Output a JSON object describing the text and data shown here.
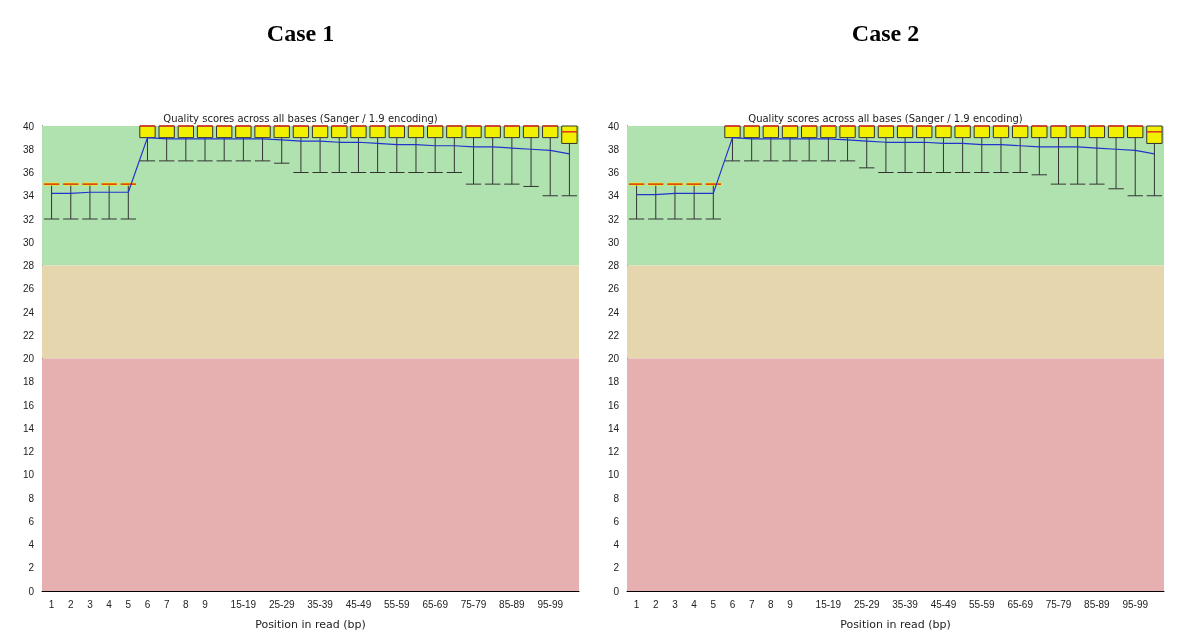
{
  "chart_data": [
    {
      "type": "box",
      "title": "Case 1",
      "subtitle": "Quality scores across all bases (Sanger / 1.9 encoding)",
      "xlabel": "Position in read (bp)",
      "categories": [
        "1",
        "2",
        "3",
        "4",
        "5",
        "6",
        "7",
        "8",
        "9",
        null,
        "15-19",
        null,
        "25-29",
        null,
        "35-39",
        null,
        "45-49",
        null,
        "55-59",
        null,
        "65-69",
        null,
        "75-79",
        null,
        "85-89",
        null,
        "95-99",
        null
      ],
      "ylim": [
        0,
        40
      ],
      "yticks": [
        0,
        2,
        4,
        6,
        8,
        10,
        12,
        14,
        16,
        18,
        20,
        22,
        24,
        26,
        28,
        30,
        32,
        34,
        36,
        38,
        40
      ],
      "grid": false,
      "bands": [
        {
          "axis": "y",
          "from": 28,
          "to": 40,
          "color": "#b0e2b0"
        },
        {
          "axis": "y",
          "from": 20,
          "to": 28,
          "color": "#e6d6ad"
        },
        {
          "axis": "y",
          "from": 0,
          "to": 20,
          "color": "#e6b0b0"
        }
      ],
      "series": [
        {
          "color": "#f0f000",
          "boxes": [
            {
              "low": 32,
              "q1": 35,
              "median": 35,
              "q3": 35,
              "high": 35
            },
            {
              "low": 32,
              "q1": 35,
              "median": 35,
              "q3": 35,
              "high": 35
            },
            {
              "low": 32,
              "q1": 35,
              "median": 35,
              "q3": 35,
              "high": 35
            },
            {
              "low": 32,
              "q1": 35,
              "median": 35,
              "q3": 35,
              "high": 35
            },
            {
              "low": 32,
              "q1": 35,
              "median": 35,
              "q3": 35,
              "high": 35
            },
            {
              "low": 37,
              "q1": 39,
              "median": 40,
              "q3": 40,
              "high": 40
            },
            {
              "low": 37,
              "q1": 39,
              "median": 40,
              "q3": 40,
              "high": 40
            },
            {
              "low": 37,
              "q1": 39,
              "median": 40,
              "q3": 40,
              "high": 40
            },
            {
              "low": 37,
              "q1": 39,
              "median": 40,
              "q3": 40,
              "high": 40
            },
            {
              "low": 37,
              "q1": 39,
              "median": 40,
              "q3": 40,
              "high": 40
            },
            {
              "low": 37,
              "q1": 39,
              "median": 40,
              "q3": 40,
              "high": 40
            },
            {
              "low": 37,
              "q1": 39,
              "median": 40,
              "q3": 40,
              "high": 40
            },
            {
              "low": 36.8,
              "q1": 39,
              "median": 40,
              "q3": 40,
              "high": 40
            },
            {
              "low": 36,
              "q1": 39,
              "median": 40,
              "q3": 40,
              "high": 40
            },
            {
              "low": 36,
              "q1": 39,
              "median": 40,
              "q3": 40,
              "high": 40
            },
            {
              "low": 36,
              "q1": 39,
              "median": 40,
              "q3": 40,
              "high": 40
            },
            {
              "low": 36,
              "q1": 39,
              "median": 40,
              "q3": 40,
              "high": 40
            },
            {
              "low": 36,
              "q1": 39,
              "median": 40,
              "q3": 40,
              "high": 40
            },
            {
              "low": 36,
              "q1": 39,
              "median": 40,
              "q3": 40,
              "high": 40
            },
            {
              "low": 36,
              "q1": 39,
              "median": 40,
              "q3": 40,
              "high": 40
            },
            {
              "low": 36,
              "q1": 39,
              "median": 40,
              "q3": 40,
              "high": 40
            },
            {
              "low": 36,
              "q1": 39,
              "median": 40,
              "q3": 40,
              "high": 40
            },
            {
              "low": 35,
              "q1": 39,
              "median": 40,
              "q3": 40,
              "high": 40
            },
            {
              "low": 35,
              "q1": 39,
              "median": 40,
              "q3": 40,
              "high": 40
            },
            {
              "low": 35,
              "q1": 39,
              "median": 40,
              "q3": 40,
              "high": 40
            },
            {
              "low": 34.8,
              "q1": 39,
              "median": 40,
              "q3": 40,
              "high": 40
            },
            {
              "low": 34,
              "q1": 39,
              "median": 40,
              "q3": 40,
              "high": 40
            },
            {
              "low": 34,
              "q1": 38.5,
              "median": 39.5,
              "q3": 40,
              "high": 40
            }
          ]
        },
        {
          "type": "line",
          "color": "#2233cc",
          "values": [
            34.2,
            34.2,
            34.3,
            34.3,
            34.3,
            39,
            38.9,
            38.9,
            38.9,
            38.9,
            38.9,
            38.9,
            38.8,
            38.7,
            38.7,
            38.6,
            38.6,
            38.5,
            38.4,
            38.4,
            38.3,
            38.3,
            38.2,
            38.2,
            38.1,
            38,
            37.9,
            37.6
          ]
        }
      ]
    },
    {
      "type": "box",
      "title": "Case 2",
      "subtitle": "Quality scores across all bases (Sanger / 1.9 encoding)",
      "xlabel": "Position in read (bp)",
      "categories": [
        "1",
        "2",
        "3",
        "4",
        "5",
        "6",
        "7",
        "8",
        "9",
        null,
        "15-19",
        null,
        "25-29",
        null,
        "35-39",
        null,
        "45-49",
        null,
        "55-59",
        null,
        "65-69",
        null,
        "75-79",
        null,
        "85-89",
        null,
        "95-99",
        null
      ],
      "ylim": [
        0,
        40
      ],
      "yticks": [
        0,
        2,
        4,
        6,
        8,
        10,
        12,
        14,
        16,
        18,
        20,
        22,
        24,
        26,
        28,
        30,
        32,
        34,
        36,
        38,
        40
      ],
      "grid": false,
      "bands": [
        {
          "axis": "y",
          "from": 28,
          "to": 40,
          "color": "#b0e2b0"
        },
        {
          "axis": "y",
          "from": 20,
          "to": 28,
          "color": "#e6d6ad"
        },
        {
          "axis": "y",
          "from": 0,
          "to": 20,
          "color": "#e6b0b0"
        }
      ],
      "series": [
        {
          "color": "#f0f000",
          "boxes": [
            {
              "low": 32,
              "q1": 35,
              "median": 35,
              "q3": 35,
              "high": 35
            },
            {
              "low": 32,
              "q1": 35,
              "median": 35,
              "q3": 35,
              "high": 35
            },
            {
              "low": 32,
              "q1": 35,
              "median": 35,
              "q3": 35,
              "high": 35
            },
            {
              "low": 32,
              "q1": 35,
              "median": 35,
              "q3": 35,
              "high": 35
            },
            {
              "low": 32,
              "q1": 35,
              "median": 35,
              "q3": 35,
              "high": 35
            },
            {
              "low": 37,
              "q1": 39,
              "median": 40,
              "q3": 40,
              "high": 40
            },
            {
              "low": 37,
              "q1": 39,
              "median": 40,
              "q3": 40,
              "high": 40
            },
            {
              "low": 37,
              "q1": 39,
              "median": 40,
              "q3": 40,
              "high": 40
            },
            {
              "low": 37,
              "q1": 39,
              "median": 40,
              "q3": 40,
              "high": 40
            },
            {
              "low": 37,
              "q1": 39,
              "median": 40,
              "q3": 40,
              "high": 40
            },
            {
              "low": 37,
              "q1": 39,
              "median": 40,
              "q3": 40,
              "high": 40
            },
            {
              "low": 37,
              "q1": 39,
              "median": 40,
              "q3": 40,
              "high": 40
            },
            {
              "low": 36.4,
              "q1": 39,
              "median": 40,
              "q3": 40,
              "high": 40
            },
            {
              "low": 36,
              "q1": 39,
              "median": 40,
              "q3": 40,
              "high": 40
            },
            {
              "low": 36,
              "q1": 39,
              "median": 40,
              "q3": 40,
              "high": 40
            },
            {
              "low": 36,
              "q1": 39,
              "median": 40,
              "q3": 40,
              "high": 40
            },
            {
              "low": 36,
              "q1": 39,
              "median": 40,
              "q3": 40,
              "high": 40
            },
            {
              "low": 36,
              "q1": 39,
              "median": 40,
              "q3": 40,
              "high": 40
            },
            {
              "low": 36,
              "q1": 39,
              "median": 40,
              "q3": 40,
              "high": 40
            },
            {
              "low": 36,
              "q1": 39,
              "median": 40,
              "q3": 40,
              "high": 40
            },
            {
              "low": 36,
              "q1": 39,
              "median": 40,
              "q3": 40,
              "high": 40
            },
            {
              "low": 35.8,
              "q1": 39,
              "median": 40,
              "q3": 40,
              "high": 40
            },
            {
              "low": 35,
              "q1": 39,
              "median": 40,
              "q3": 40,
              "high": 40
            },
            {
              "low": 35,
              "q1": 39,
              "median": 40,
              "q3": 40,
              "high": 40
            },
            {
              "low": 35,
              "q1": 39,
              "median": 40,
              "q3": 40,
              "high": 40
            },
            {
              "low": 34.6,
              "q1": 39,
              "median": 40,
              "q3": 40,
              "high": 40
            },
            {
              "low": 34,
              "q1": 39,
              "median": 40,
              "q3": 40,
              "high": 40
            },
            {
              "low": 34,
              "q1": 38.5,
              "median": 39.5,
              "q3": 40,
              "high": 40
            }
          ]
        },
        {
          "type": "line",
          "color": "#2233cc",
          "values": [
            34.1,
            34.1,
            34.2,
            34.2,
            34.2,
            39,
            38.9,
            38.9,
            38.9,
            38.9,
            38.9,
            38.8,
            38.7,
            38.6,
            38.6,
            38.6,
            38.5,
            38.5,
            38.4,
            38.4,
            38.3,
            38.2,
            38.2,
            38.2,
            38.1,
            38,
            37.9,
            37.6
          ]
        }
      ]
    }
  ]
}
